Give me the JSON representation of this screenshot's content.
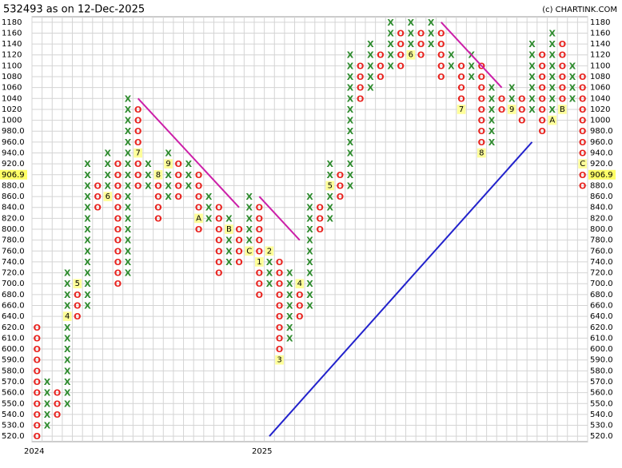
{
  "chart_data": {
    "type": "point-and-figure",
    "title": "532493 as on 12-Dec-2025",
    "source": "(c) CHARTINK.COM",
    "x_color": "#2e8b2e",
    "o_color": "#e8231f",
    "grid": true,
    "yticks": [
      1180,
      1160,
      1140,
      1120,
      1100,
      1080,
      1060,
      1040,
      1020,
      1000,
      {
        "value": 980,
        "label": "980.0"
      },
      {
        "value": 960,
        "label": "960.0"
      },
      {
        "value": 940,
        "label": "940.0"
      },
      {
        "value": 920,
        "label": "920.0"
      },
      906.9,
      {
        "value": 880,
        "label": "880.0"
      },
      {
        "value": 860,
        "label": "860.0"
      },
      {
        "value": 840,
        "label": "840.0"
      },
      {
        "value": 820,
        "label": "820.0"
      },
      {
        "value": 800,
        "label": "800.0"
      },
      {
        "value": 780,
        "label": "780.0"
      },
      {
        "value": 760,
        "label": "760.0"
      },
      {
        "value": 740,
        "label": "740.0"
      },
      {
        "value": 720,
        "label": "720.0"
      },
      {
        "value": 700,
        "label": "700.0"
      },
      {
        "value": 680,
        "label": "680.0"
      },
      {
        "value": 660,
        "label": "660.0"
      },
      {
        "value": 640,
        "label": "640.0"
      },
      {
        "value": 620,
        "label": "620.0"
      },
      {
        "value": 610,
        "label": "610.0"
      },
      {
        "value": 600,
        "label": "600.0"
      },
      {
        "value": 590,
        "label": "590.0"
      },
      {
        "value": 580,
        "label": "580.0"
      },
      {
        "value": 570,
        "label": "570.0"
      },
      {
        "value": 560,
        "label": "560.0"
      },
      {
        "value": 550,
        "label": "550.0"
      },
      {
        "value": 540,
        "label": "540.0"
      },
      {
        "value": 530,
        "label": "530.0"
      },
      {
        "value": 520,
        "label": "520.0"
      }
    ],
    "columns": [
      {
        "type": "O",
        "high": 620,
        "low": 520,
        "year": "2024"
      },
      {
        "type": "X",
        "high": 570,
        "low": 530
      },
      {
        "type": "O",
        "high": 560,
        "low": 540
      },
      {
        "type": "X",
        "high": 720,
        "low": 550,
        "months": [
          {
            "price": 640,
            "label": "4"
          }
        ]
      },
      {
        "type": "O",
        "high": 700,
        "low": 640,
        "months": [
          {
            "price": 700,
            "label": "5"
          }
        ]
      },
      {
        "type": "X",
        "high": 920,
        "low": 660
      },
      {
        "type": "O",
        "high": 880,
        "low": 840
      },
      {
        "type": "X",
        "high": 940,
        "low": 860,
        "months": [
          {
            "price": 860,
            "label": "6"
          }
        ]
      },
      {
        "type": "O",
        "high": 920,
        "low": 700
      },
      {
        "type": "X",
        "high": 1040,
        "low": 720
      },
      {
        "type": "O",
        "high": 1020,
        "low": 880,
        "months": [
          {
            "price": 940,
            "label": "7"
          }
        ]
      },
      {
        "type": "X",
        "high": 920,
        "low": 880
      },
      {
        "type": "O",
        "high": 900,
        "low": 820,
        "months": [
          {
            "price": 900,
            "label": "8"
          }
        ]
      },
      {
        "type": "X",
        "high": 940,
        "low": 860,
        "months": [
          {
            "price": 920,
            "label": "9"
          }
        ]
      },
      {
        "type": "O",
        "high": 920,
        "low": 860
      },
      {
        "type": "X",
        "high": 920,
        "low": 880
      },
      {
        "type": "O",
        "high": 900,
        "low": 800,
        "months": [
          {
            "price": 820,
            "label": "A"
          }
        ]
      },
      {
        "type": "X",
        "high": 860,
        "low": 820
      },
      {
        "type": "O",
        "high": 840,
        "low": 720
      },
      {
        "type": "X",
        "high": 820,
        "low": 740,
        "months": [
          {
            "price": 800,
            "label": "B"
          }
        ]
      },
      {
        "type": "O",
        "high": 800,
        "low": 740
      },
      {
        "type": "X",
        "high": 860,
        "low": 760,
        "months": [
          {
            "price": 760,
            "label": "C"
          }
        ]
      },
      {
        "type": "O",
        "high": 840,
        "low": 680,
        "year": "2025",
        "months": [
          {
            "price": 740,
            "label": "1"
          }
        ]
      },
      {
        "type": "X",
        "high": 760,
        "low": 700,
        "months": [
          {
            "price": 760,
            "label": "2"
          }
        ]
      },
      {
        "type": "O",
        "high": 740,
        "low": 590,
        "months": [
          {
            "price": 590,
            "label": "3"
          }
        ]
      },
      {
        "type": "X",
        "high": 720,
        "low": 610
      },
      {
        "type": "O",
        "high": 700,
        "low": 640,
        "months": [
          {
            "price": 700,
            "label": "4"
          }
        ]
      },
      {
        "type": "X",
        "high": 860,
        "low": 660
      },
      {
        "type": "O",
        "high": 840,
        "low": 800
      },
      {
        "type": "X",
        "high": 920,
        "low": 820,
        "months": [
          {
            "price": 880,
            "label": "5"
          }
        ]
      },
      {
        "type": "O",
        "high": 900,
        "low": 860
      },
      {
        "type": "X",
        "high": 1120,
        "low": 880
      },
      {
        "type": "O",
        "high": 1100,
        "low": 1040
      },
      {
        "type": "X",
        "high": 1140,
        "low": 1060
      },
      {
        "type": "O",
        "high": 1120,
        "low": 1080
      },
      {
        "type": "X",
        "high": 1180,
        "low": 1100
      },
      {
        "type": "O",
        "high": 1160,
        "low": 1100
      },
      {
        "type": "X",
        "high": 1180,
        "low": 1120,
        "months": [
          {
            "price": 1120,
            "label": "6"
          }
        ]
      },
      {
        "type": "O",
        "high": 1160,
        "low": 1120
      },
      {
        "type": "X",
        "high": 1180,
        "low": 1140
      },
      {
        "type": "O",
        "high": 1160,
        "low": 1080
      },
      {
        "type": "X",
        "high": 1120,
        "low": 1100
      },
      {
        "type": "O",
        "high": 1100,
        "low": 1020,
        "months": [
          {
            "price": 1020,
            "label": "7"
          }
        ]
      },
      {
        "type": "X",
        "high": 1120,
        "low": 1080
      },
      {
        "type": "O",
        "high": 1100,
        "low": 940,
        "months": [
          {
            "price": 940,
            "label": "8"
          }
        ]
      },
      {
        "type": "X",
        "high": 1060,
        "low": 960
      },
      {
        "type": "O",
        "high": 1040,
        "low": 1020
      },
      {
        "type": "X",
        "high": 1060,
        "low": 1020,
        "months": [
          {
            "price": 1020,
            "label": "9"
          }
        ]
      },
      {
        "type": "O",
        "high": 1040,
        "low": 1000
      },
      {
        "type": "X",
        "high": 1140,
        "low": 1020
      },
      {
        "type": "O",
        "high": 1120,
        "low": 980
      },
      {
        "type": "X",
        "high": 1160,
        "low": 1000,
        "months": [
          {
            "price": 1000,
            "label": "A"
          }
        ]
      },
      {
        "type": "O",
        "high": 1140,
        "low": 1020,
        "months": [
          {
            "price": 1020,
            "label": "B"
          }
        ]
      },
      {
        "type": "X",
        "high": 1100,
        "low": 1040
      },
      {
        "type": "O",
        "high": 1080,
        "low": 880,
        "months": [
          {
            "price": 920,
            "label": "C"
          }
        ]
      }
    ],
    "trendlines": [
      {
        "color": "#cc1fa8",
        "from": {
          "column": 10,
          "price": 1040
        },
        "to": {
          "column": 20,
          "price": 840
        }
      },
      {
        "color": "#cc1fa8",
        "from": {
          "column": 22,
          "price": 860
        },
        "to": {
          "column": 26,
          "price": 780
        }
      },
      {
        "color": "#cc1fa8",
        "from": {
          "column": 40,
          "price": 1180
        },
        "to": {
          "column": 46,
          "price": 1060
        }
      },
      {
        "color": "#2222cc",
        "from": {
          "column": 23,
          "price": 520
        },
        "to": {
          "column": 49,
          "price": 960
        }
      }
    ]
  }
}
